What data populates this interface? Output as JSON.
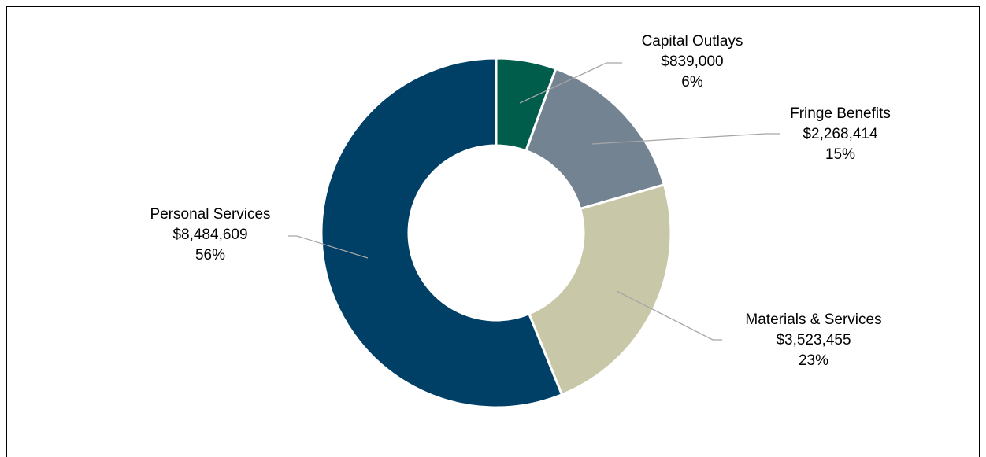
{
  "chart_data": {
    "type": "pie",
    "donut": true,
    "title": "",
    "slices": [
      {
        "category": "Capital Outlays",
        "value": 839000,
        "value_label": "$839,000",
        "percent_label": "6%",
        "color": "#005C4B"
      },
      {
        "category": "Fringe Benefits",
        "value": 2268414,
        "value_label": "$2,268,414",
        "percent_label": "15%",
        "color": "#738392"
      },
      {
        "category": "Materials & Services",
        "value": 3523455,
        "value_label": "$3,523,455",
        "percent_label": "23%",
        "color": "#C8C7A8"
      },
      {
        "category": "Personal Services",
        "value": 8484609,
        "value_label": "$8,484,609",
        "percent_label": "56%",
        "color": "#003F66"
      }
    ],
    "legend": "none",
    "start_angle": "12 o'clock, clockwise"
  }
}
